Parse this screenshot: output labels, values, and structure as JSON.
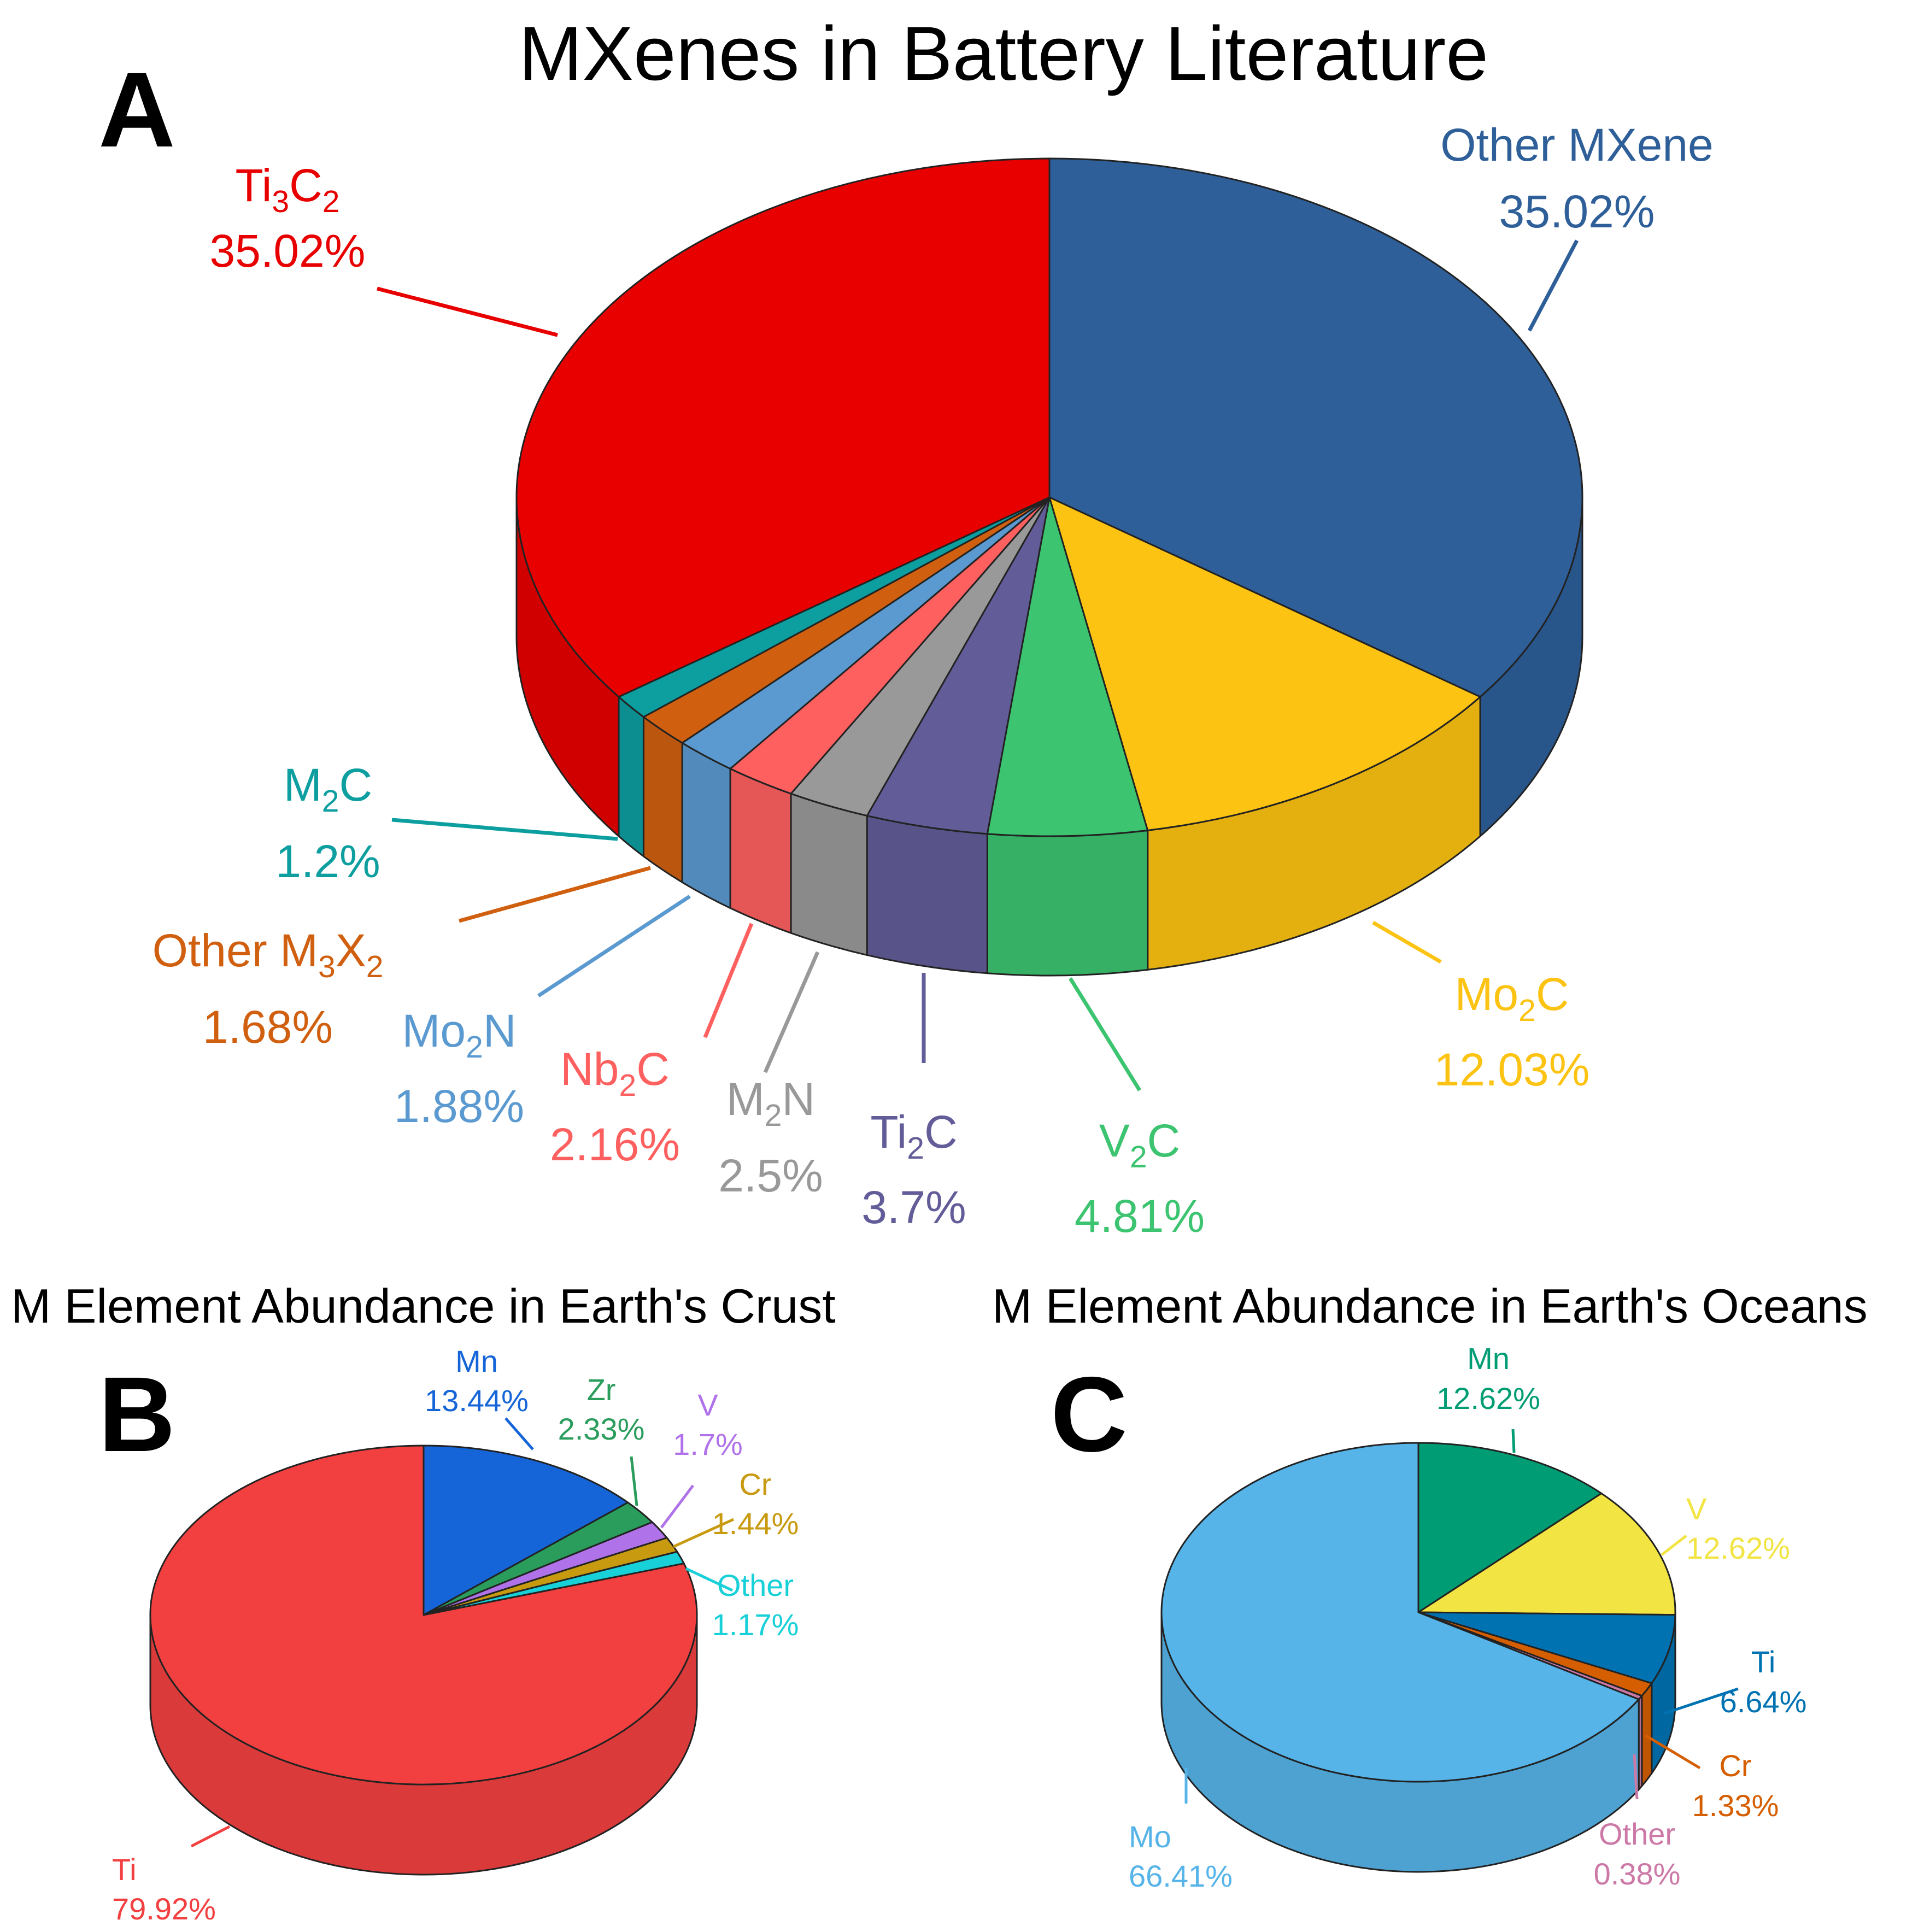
{
  "chart_data": [
    {
      "type": "pie",
      "panel": "A",
      "title": "MXenes in Battery Literature",
      "slices": [
        {
          "label": "Other MXene",
          "value": 35.02,
          "value_label": "35.02%",
          "color": "#2e5f99"
        },
        {
          "label": "Mo2C",
          "sub": [
            "Mo",
            "2",
            "C"
          ],
          "value": 12.03,
          "value_label": "12.03%",
          "color": "#fcc312"
        },
        {
          "label": "V2C",
          "sub": [
            "V",
            "2",
            "C"
          ],
          "value": 4.81,
          "value_label": "4.81%",
          "color": "#3cc470"
        },
        {
          "label": "Ti2C",
          "sub": [
            "Ti",
            "2",
            "C"
          ],
          "value": 3.7,
          "value_label": "3.7%",
          "color": "#625d98"
        },
        {
          "label": "M2N",
          "sub": [
            "M",
            "2",
            "N"
          ],
          "value": 2.5,
          "value_label": "2.5%",
          "color": "#999999"
        },
        {
          "label": "Nb2C",
          "sub": [
            "Nb",
            "2",
            "C"
          ],
          "value": 2.16,
          "value_label": "2.16%",
          "color": "#fe6060"
        },
        {
          "label": "Mo2N",
          "sub": [
            "Mo",
            "2",
            "N"
          ],
          "value": 1.88,
          "value_label": "1.88%",
          "color": "#5b9ad0"
        },
        {
          "label": "Other M3X2",
          "sub": [
            "Other M",
            "3",
            "X",
            "2",
            ""
          ],
          "value": 1.68,
          "value_label": "1.68%",
          "color": "#d06010"
        },
        {
          "label": "M2C",
          "sub": [
            "M",
            "2",
            "C"
          ],
          "value": 1.2,
          "value_label": "1.2%",
          "color": "#0d9ea0"
        },
        {
          "label": "Ti3C2",
          "sub": [
            "Ti",
            "3",
            "C",
            "2",
            ""
          ],
          "value": 35.02,
          "value_label": "35.02%",
          "color": "#e80000"
        }
      ]
    },
    {
      "type": "pie",
      "panel": "B",
      "title": "M Element Abundance in Earth's Crust",
      "slices": [
        {
          "label": "Mn",
          "value": 13.44,
          "value_label": "13.44%",
          "color": "#1565d8"
        },
        {
          "label": "Zr",
          "value": 2.33,
          "value_label": "2.33%",
          "color": "#2a9d5c"
        },
        {
          "label": "V",
          "value": 1.7,
          "value_label": "1.7%",
          "color": "#b072e8"
        },
        {
          "label": "Cr",
          "value": 1.44,
          "value_label": "1.44%",
          "color": "#c79a10"
        },
        {
          "label": "Other",
          "value": 1.17,
          "value_label": "1.17%",
          "color": "#18d0d8"
        },
        {
          "label": "Ti",
          "value": 79.92,
          "value_label": "79.92%",
          "color": "#f24040"
        }
      ]
    },
    {
      "type": "pie",
      "panel": "C",
      "title": "M Element Abundance in Earth's Oceans",
      "slices": [
        {
          "label": "Mn",
          "value": 12.62,
          "value_label": "12.62%",
          "color": "#009c73"
        },
        {
          "label": "V",
          "value": 12.62,
          "value_label": "12.62%",
          "color": "#f2e443"
        },
        {
          "label": "Ti",
          "value": 6.64,
          "value_label": "6.64%",
          "color": "#0072b2"
        },
        {
          "label": "Cr",
          "value": 1.33,
          "value_label": "1.33%",
          "color": "#d55e00"
        },
        {
          "label": "Other",
          "value": 0.38,
          "value_label": "0.38%",
          "color": "#cc79a7"
        },
        {
          "label": "Mo",
          "value": 66.41,
          "value_label": "66.41%",
          "color": "#56b4e9"
        }
      ]
    }
  ]
}
